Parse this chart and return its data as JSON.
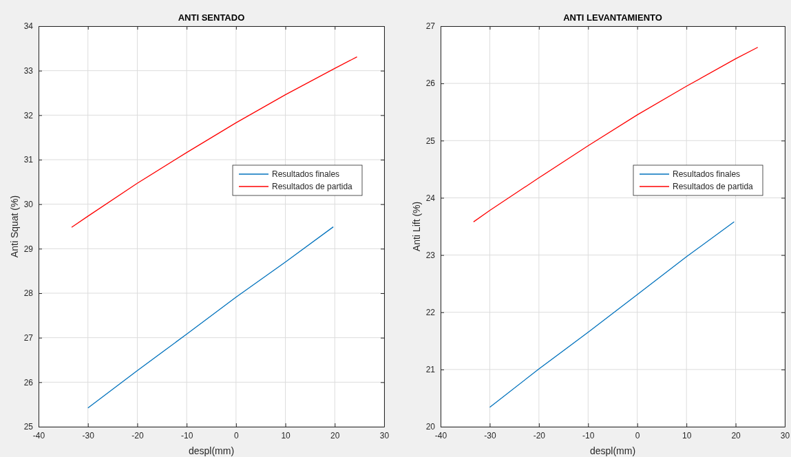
{
  "chart_data": [
    {
      "type": "line",
      "title": "ANTI SENTADO",
      "xlabel": "despl(mm)",
      "ylabel": "Anti Squat (%)",
      "xlim": [
        -40,
        30
      ],
      "xticks": [
        -40,
        -30,
        -20,
        -10,
        0,
        10,
        20,
        30
      ],
      "ylim": [
        25,
        34
      ],
      "yticks": [
        25,
        26,
        27,
        28,
        29,
        30,
        31,
        32,
        33,
        34
      ],
      "grid": true,
      "legend": "right",
      "line_style": "solid",
      "marker": "none",
      "series": [
        {
          "name": "Resultados finales",
          "color": "#0072bd",
          "x": [
            -30,
            -20,
            -10,
            0,
            10,
            19.7
          ],
          "values": [
            25.42,
            26.26,
            27.08,
            27.91,
            28.7,
            29.49
          ]
        },
        {
          "name": "Resultados de partida",
          "color": "#ff0000",
          "x": [
            -33.3,
            -30,
            -20,
            -10,
            0,
            10,
            20,
            24.5
          ],
          "values": [
            29.48,
            29.73,
            30.47,
            31.16,
            31.83,
            32.46,
            33.05,
            33.31
          ]
        }
      ]
    },
    {
      "type": "line",
      "title": "ANTI LEVANTAMIENTO",
      "xlabel": "despl(mm)",
      "ylabel": "Anti Lift (%)",
      "xlim": [
        -40,
        30
      ],
      "xticks": [
        -40,
        -30,
        -20,
        -10,
        0,
        10,
        20,
        30
      ],
      "ylim": [
        20,
        27
      ],
      "yticks": [
        20,
        21,
        22,
        23,
        24,
        25,
        26,
        27
      ],
      "grid": true,
      "legend": "right",
      "line_style": "solid",
      "marker": "none",
      "series": [
        {
          "name": "Resultados finales",
          "color": "#0072bd",
          "x": [
            -30,
            -20,
            -10,
            0,
            10,
            19.7
          ],
          "values": [
            20.34,
            21.01,
            21.65,
            22.31,
            22.97,
            23.58
          ]
        },
        {
          "name": "Resultados de partida",
          "color": "#ff0000",
          "x": [
            -33.3,
            -30,
            -20,
            -10,
            0,
            10,
            20,
            24.5
          ],
          "values": [
            23.58,
            23.78,
            24.35,
            24.91,
            25.45,
            25.95,
            26.43,
            26.63
          ]
        }
      ]
    }
  ]
}
